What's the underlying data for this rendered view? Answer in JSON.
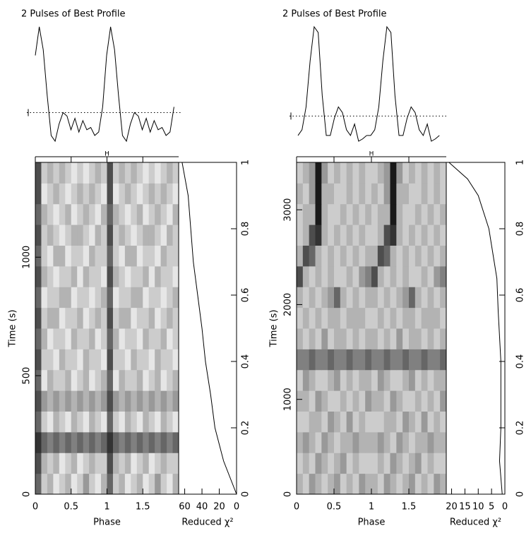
{
  "chart_data": [
    {
      "type": "fold",
      "title": "2 Pulses of Best Profile",
      "ref_mark": "H",
      "profile": [
        0.75,
        1.0,
        0.8,
        0.4,
        0.05,
        0.0,
        0.15,
        0.25,
        0.22,
        0.1,
        0.2,
        0.08,
        0.18,
        0.1,
        0.12,
        0.05,
        0.08,
        0.3
      ],
      "profile_ylim": [
        0,
        1
      ],
      "profile_mean": 0.25,
      "xlabel": "Phase",
      "xlim": [
        0,
        2
      ],
      "xticks": [
        0,
        0.5,
        1,
        1.5
      ],
      "ylabel": "Time (s)",
      "ylim": [
        0,
        1400
      ],
      "yticks": [
        0,
        500,
        1000
      ],
      "heatmap": [
        [
          0.6,
          0.2,
          0.3,
          0.1,
          0.2,
          0.3,
          0.1,
          0.2,
          0.4,
          0.2,
          0.1,
          0.3
        ],
        [
          0.7,
          0.3,
          0.2,
          0.3,
          0.1,
          0.2,
          0.3,
          0.1,
          0.2,
          0.3,
          0.2,
          0.2
        ],
        [
          0.8,
          0.6,
          0.5,
          0.6,
          0.5,
          0.6,
          0.5,
          0.6,
          0.5,
          0.6,
          0.5,
          0.6
        ],
        [
          0.6,
          0.2,
          0.1,
          0.3,
          0.2,
          0.1,
          0.3,
          0.2,
          0.1,
          0.3,
          0.2,
          0.1
        ],
        [
          0.7,
          0.4,
          0.3,
          0.4,
          0.3,
          0.4,
          0.3,
          0.4,
          0.3,
          0.4,
          0.3,
          0.4
        ],
        [
          0.6,
          0.1,
          0.3,
          0.2,
          0.2,
          0.3,
          0.1,
          0.2,
          0.3,
          0.1,
          0.2,
          0.3
        ],
        [
          0.7,
          0.2,
          0.2,
          0.1,
          0.3,
          0.2,
          0.2,
          0.1,
          0.3,
          0.2,
          0.2,
          0.1
        ],
        [
          0.6,
          0.3,
          0.1,
          0.2,
          0.2,
          0.1,
          0.3,
          0.2,
          0.2,
          0.3,
          0.1,
          0.2
        ],
        [
          0.7,
          0.2,
          0.3,
          0.3,
          0.1,
          0.2,
          0.2,
          0.3,
          0.1,
          0.2,
          0.3,
          0.2
        ],
        [
          0.6,
          0.1,
          0.2,
          0.2,
          0.3,
          0.3,
          0.1,
          0.2,
          0.2,
          0.1,
          0.2,
          0.3
        ],
        [
          0.7,
          0.3,
          0.2,
          0.1,
          0.2,
          0.2,
          0.3,
          0.1,
          0.3,
          0.2,
          0.2,
          0.1
        ],
        [
          0.6,
          0.2,
          0.1,
          0.3,
          0.3,
          0.1,
          0.2,
          0.2,
          0.1,
          0.3,
          0.2,
          0.2
        ],
        [
          0.7,
          0.2,
          0.3,
          0.2,
          0.1,
          0.2,
          0.3,
          0.3,
          0.2,
          0.1,
          0.3,
          0.2
        ],
        [
          0.6,
          0.3,
          0.2,
          0.1,
          0.2,
          0.3,
          0.1,
          0.2,
          0.3,
          0.2,
          0.1,
          0.3
        ],
        [
          0.7,
          0.1,
          0.2,
          0.3,
          0.2,
          0.1,
          0.2,
          0.3,
          0.2,
          0.3,
          0.2,
          0.1
        ],
        [
          0.7,
          0.2,
          0.3,
          0.2,
          0.3,
          0.2,
          0.1,
          0.2,
          0.1,
          0.2,
          0.3,
          0.2
        ]
      ],
      "chi_label": "Reduced χ²",
      "chilim": [
        67,
        0
      ],
      "chiticks": [
        60,
        40,
        20,
        0
      ],
      "frac": [
        0,
        0.1,
        0.2,
        0.3,
        0.4,
        0.5,
        0.6,
        0.7,
        0.8,
        0.9,
        1
      ],
      "chi": [
        0,
        15,
        25,
        30,
        36,
        40,
        45,
        50,
        53,
        56,
        63
      ],
      "fracticks": [
        0,
        0.2,
        0.4,
        0.6,
        0.8,
        1
      ]
    },
    {
      "type": "fold",
      "title": "2 Pulses of Best Profile",
      "ref_mark": "H",
      "profile": [
        0.05,
        0.1,
        0.3,
        0.7,
        1.0,
        0.95,
        0.4,
        0.05,
        0.05,
        0.2,
        0.3,
        0.25,
        0.1,
        0.05,
        0.15,
        0.0,
        0.02,
        0.05
      ],
      "profile_ylim": [
        0,
        1
      ],
      "profile_mean": 0.22,
      "xlabel": "Phase",
      "xlim": [
        0,
        2
      ],
      "xticks": [
        0,
        0.5,
        1,
        1.5
      ],
      "ylabel": "Time (s)",
      "ylim": [
        0,
        3500
      ],
      "yticks": [
        0,
        1000,
        2000,
        3000
      ],
      "heatmap": [
        [
          0.3,
          0.2,
          0.4,
          0.3,
          0.2,
          0.3,
          0.4,
          0.2,
          0.3,
          0.2,
          0.4,
          0.3
        ],
        [
          0.2,
          0.3,
          0.2,
          0.4,
          0.3,
          0.2,
          0.3,
          0.4,
          0.2,
          0.3,
          0.2,
          0.2
        ],
        [
          0.3,
          0.4,
          0.3,
          0.2,
          0.4,
          0.3,
          0.2,
          0.3,
          0.3,
          0.4,
          0.3,
          0.3
        ],
        [
          0.2,
          0.2,
          0.3,
          0.3,
          0.2,
          0.4,
          0.3,
          0.2,
          0.4,
          0.2,
          0.3,
          0.2
        ],
        [
          0.3,
          0.3,
          0.2,
          0.4,
          0.3,
          0.2,
          0.2,
          0.3,
          0.2,
          0.3,
          0.2,
          0.4
        ],
        [
          0.2,
          0.4,
          0.3,
          0.2,
          0.2,
          0.3,
          0.4,
          0.2,
          0.3,
          0.2,
          0.3,
          0.3
        ],
        [
          0.5,
          0.5,
          0.6,
          0.5,
          0.5,
          0.6,
          0.5,
          0.5,
          0.6,
          0.5,
          0.5,
          0.6
        ],
        [
          0.3,
          0.2,
          0.3,
          0.2,
          0.4,
          0.2,
          0.3,
          0.3,
          0.2,
          0.3,
          0.2,
          0.3
        ],
        [
          0.2,
          0.3,
          0.2,
          0.3,
          0.2,
          0.3,
          0.3,
          0.2,
          0.3,
          0.3,
          0.3,
          0.2
        ],
        [
          0.3,
          0.2,
          0.3,
          0.2,
          0.3,
          0.4,
          0.6,
          0.3,
          0.2,
          0.3,
          0.2,
          0.3
        ],
        [
          0.7,
          0.3,
          0.2,
          0.3,
          0.2,
          0.3,
          0.2,
          0.2,
          0.3,
          0.2,
          0.4,
          0.5
        ],
        [
          0.3,
          0.7,
          0.6,
          0.3,
          0.2,
          0.3,
          0.2,
          0.3,
          0.2,
          0.3,
          0.2,
          0.3
        ],
        [
          0.2,
          0.3,
          0.7,
          0.8,
          0.3,
          0.2,
          0.3,
          0.2,
          0.3,
          0.2,
          0.3,
          0.2
        ],
        [
          0.2,
          0.3,
          0.3,
          0.9,
          0.3,
          0.2,
          0.2,
          0.3,
          0.2,
          0.3,
          0.2,
          0.3
        ],
        [
          0.3,
          0.2,
          0.4,
          0.9,
          0.3,
          0.3,
          0.2,
          0.2,
          0.3,
          0.2,
          0.3,
          0.2
        ],
        [
          0.2,
          0.3,
          0.4,
          0.9,
          0.4,
          0.2,
          0.3,
          0.2,
          0.3,
          0.2,
          0.3,
          0.2
        ]
      ],
      "chi_label": "Reduced χ²",
      "chilim": [
        22,
        0
      ],
      "chiticks": [
        20,
        15,
        10,
        5,
        0
      ],
      "frac": [
        0,
        0.1,
        0.2,
        0.3,
        0.4,
        0.55,
        0.65,
        0.7,
        0.8,
        0.9,
        0.95,
        1
      ],
      "chi": [
        1,
        2,
        1.5,
        1.5,
        1.5,
        2.5,
        3,
        4,
        6,
        10,
        14,
        21
      ],
      "fracticks": [
        0,
        0.2,
        0.4,
        0.6,
        0.8,
        1
      ]
    }
  ]
}
